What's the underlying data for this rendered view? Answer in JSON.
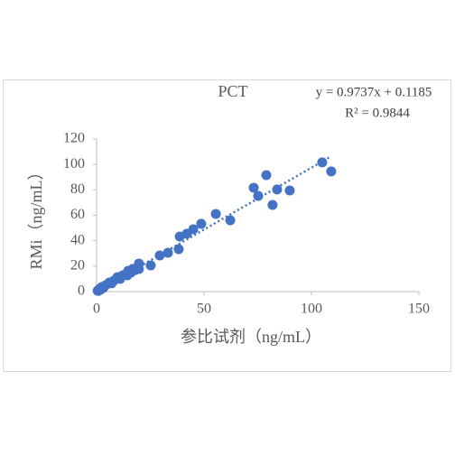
{
  "chart_data": {
    "type": "scatter",
    "title": "PCT",
    "annotations": [
      "y = 0.9737x + 0.1185",
      "R² = 0.9844"
    ],
    "x_label": "参比试剂（ng/mL）",
    "y_label": "RMi（ng/mL）",
    "color": "#4472c4",
    "x": [
      105,
      109.2,
      79,
      73.1,
      75.2,
      84,
      89.9,
      81.9,
      62.2,
      55.5,
      48.7,
      45,
      42,
      38.7,
      38.2,
      33.2,
      29.4,
      25.2,
      19.7,
      19.7,
      16.8,
      14.7,
      14.3,
      12.2,
      9.7,
      8,
      5.9,
      4.2,
      2.5,
      1.3,
      0.5,
      0.8,
      16,
      18,
      11,
      7,
      3.2,
      1.8
    ],
    "values": [
      101.6,
      94.5,
      91.6,
      81.7,
      75.3,
      80.3,
      79.5,
      68.2,
      56.1,
      61.1,
      53.3,
      49,
      45.5,
      43.3,
      33.4,
      30.5,
      28.4,
      20.6,
      22,
      17.8,
      17.8,
      16.3,
      12.8,
      12.8,
      11.4,
      8.5,
      7.1,
      5,
      3.6,
      2.1,
      0.7,
      0.5,
      15,
      17,
      10,
      6.5,
      3,
      1.5
    ],
    "trendline": {
      "slope": 0.9737,
      "intercept": 0.1185,
      "xrange": [
        0,
        109
      ],
      "style": "dotted"
    },
    "xlim": [
      0,
      150
    ],
    "xticks": [
      0,
      50,
      100,
      150
    ],
    "ylim": [
      0,
      120
    ],
    "yticks": [
      0,
      20,
      40,
      60,
      80,
      100,
      120
    ],
    "grid": false
  }
}
